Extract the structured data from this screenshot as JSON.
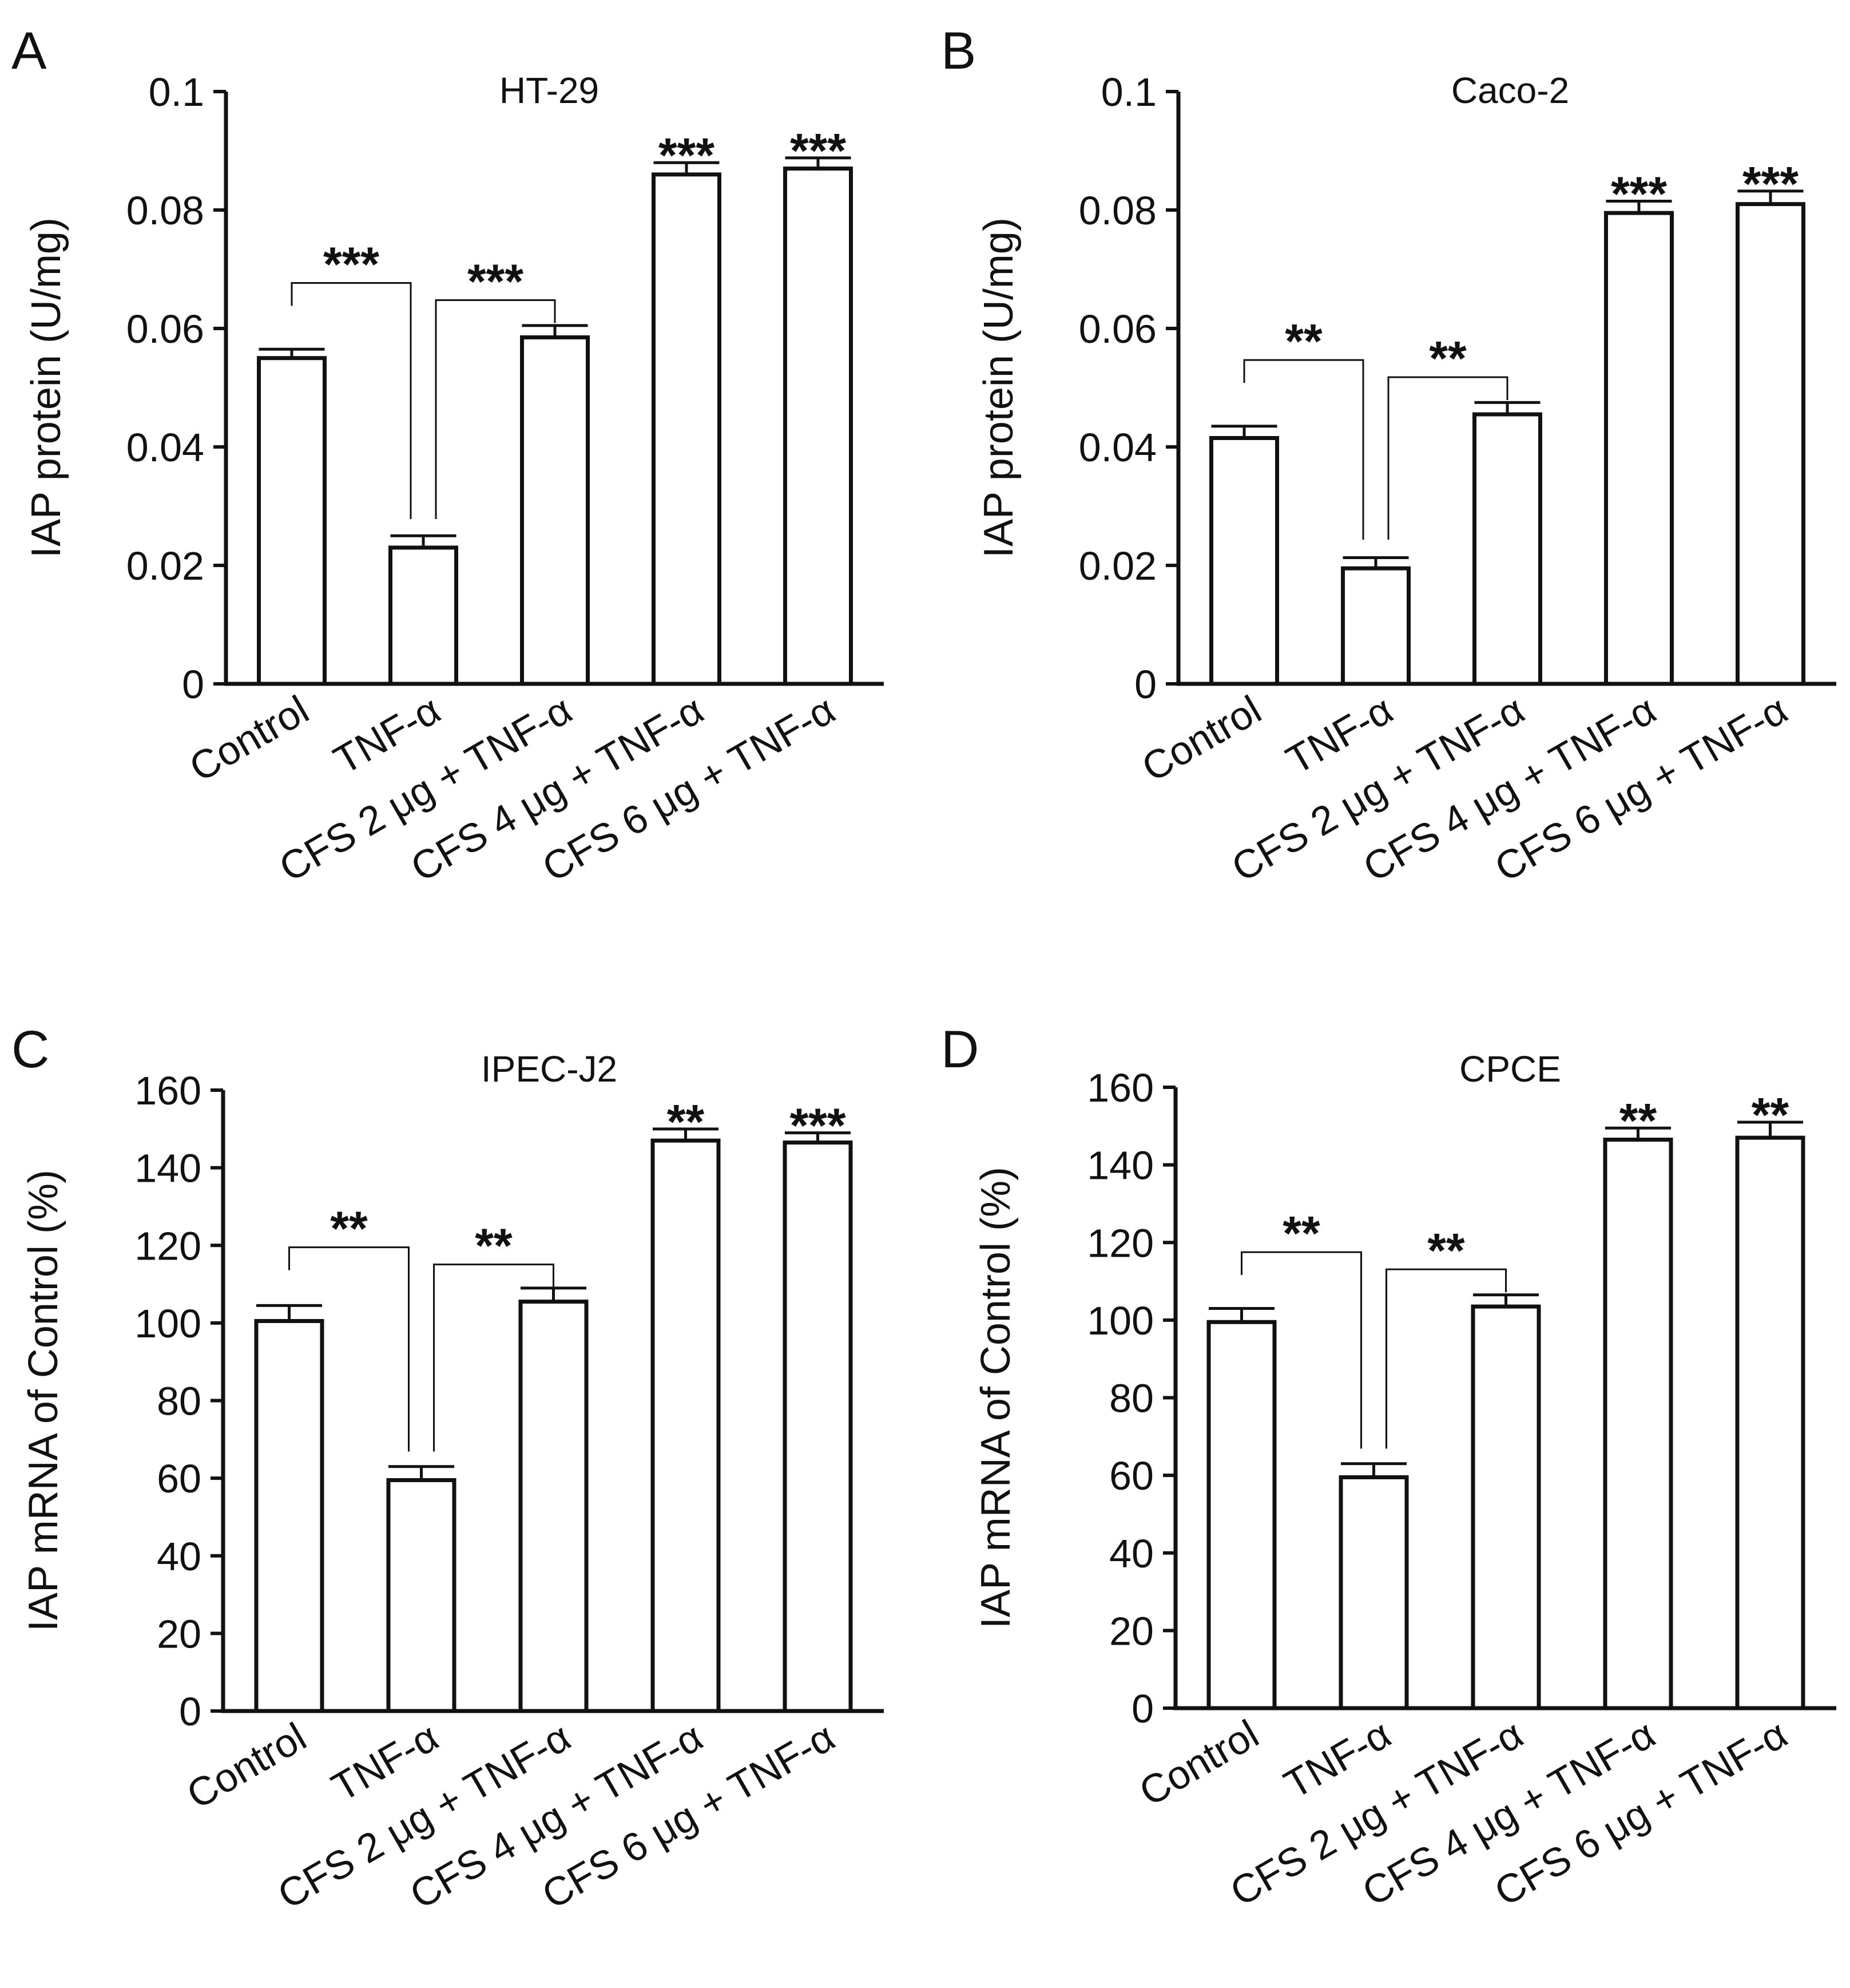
{
  "chart_data": [
    {
      "panel": "A",
      "type": "bar",
      "title": "HT-29",
      "xlabel": "",
      "ylabel": "IAP protein (U/mg)",
      "ylim": [
        0,
        0.1
      ],
      "yticks": [
        "0",
        "0.02",
        "0.04",
        "0.06",
        "0.08",
        "0.1"
      ],
      "categories": [
        "Control",
        "TNF-α",
        "CFS 2 μg + TNF-α",
        "CFS 4 μg + TNF-α",
        "CFS 6 μg + TNF-α"
      ],
      "values": [
        0.055,
        0.023,
        0.0585,
        0.086,
        0.087
      ],
      "errors": [
        0.0015,
        0.002,
        0.002,
        0.002,
        0.0018
      ],
      "bar_stars": [
        "",
        "",
        "",
        "***",
        "***"
      ],
      "brackets": [
        {
          "from": 0,
          "to": 1,
          "label": "***"
        },
        {
          "from": 1,
          "to": 2,
          "label": "***"
        }
      ]
    },
    {
      "panel": "B",
      "type": "bar",
      "title": "Caco-2",
      "xlabel": "",
      "ylabel": "IAP protein (U/mg)",
      "ylim": [
        0,
        0.1
      ],
      "yticks": [
        "0",
        "0.02",
        "0.04",
        "0.06",
        "0.08",
        "0.1"
      ],
      "categories": [
        "Control",
        "TNF-α",
        "CFS 2 μg + TNF-α",
        "CFS 4 μg + TNF-α",
        "CFS 6 μg + TNF-α"
      ],
      "values": [
        0.0415,
        0.0195,
        0.0455,
        0.0795,
        0.081
      ],
      "errors": [
        0.002,
        0.0018,
        0.002,
        0.002,
        0.0022
      ],
      "bar_stars": [
        "",
        "",
        "",
        "***",
        "***"
      ],
      "brackets": [
        {
          "from": 0,
          "to": 1,
          "label": "**"
        },
        {
          "from": 1,
          "to": 2,
          "label": "**"
        }
      ]
    },
    {
      "panel": "C",
      "type": "bar",
      "title": "IPEC-J2",
      "xlabel": "",
      "ylabel": "IAP mRNA of Control (%)",
      "ylim": [
        0,
        160
      ],
      "yticks": [
        "0",
        "20",
        "40",
        "60",
        "80",
        "100",
        "120",
        "140",
        "160"
      ],
      "categories": [
        "Control",
        "TNF-α",
        "CFS 2 μg + TNF-α",
        "CFS 4 μg + TNF-α",
        "CFS 6 μg + TNF-α"
      ],
      "values": [
        100.5,
        59.5,
        105.5,
        147,
        146.5
      ],
      "errors": [
        4,
        3.5,
        3.5,
        3,
        2.5
      ],
      "bar_stars": [
        "",
        "",
        "",
        "**",
        "***"
      ],
      "brackets": [
        {
          "from": 0,
          "to": 1,
          "label": "**"
        },
        {
          "from": 1,
          "to": 2,
          "label": "**"
        }
      ]
    },
    {
      "panel": "D",
      "type": "bar",
      "title": "CPCE",
      "xlabel": "",
      "ylabel": "IAP mRNA of Control (%)",
      "ylim": [
        0,
        160
      ],
      "yticks": [
        "0",
        "20",
        "40",
        "60",
        "80",
        "100",
        "120",
        "140",
        "160"
      ],
      "categories": [
        "Control",
        "TNF-α",
        "CFS 2 μg + TNF-α",
        "CFS 4 μg + TNF-α",
        "CFS 6 μg + TNF-α"
      ],
      "values": [
        99.5,
        59.5,
        103.5,
        146.5,
        147
      ],
      "errors": [
        3.5,
        3.5,
        3,
        3,
        4
      ],
      "bar_stars": [
        "",
        "",
        "",
        "**",
        "**"
      ],
      "brackets": [
        {
          "from": 0,
          "to": 1,
          "label": "**"
        },
        {
          "from": 1,
          "to": 2,
          "label": "**"
        }
      ]
    }
  ]
}
